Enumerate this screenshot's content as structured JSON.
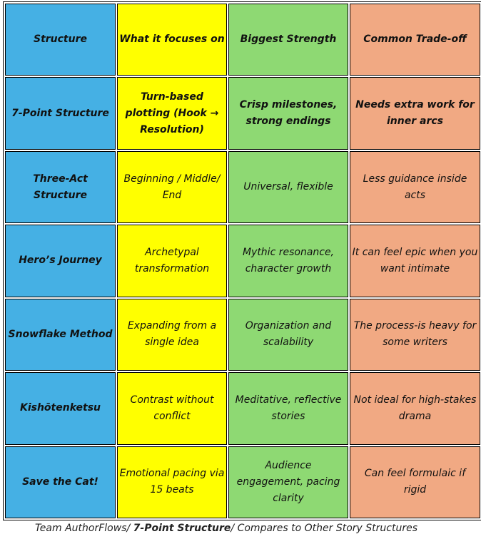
{
  "table": {
    "header": [
      "Structure",
      "What it focuses on",
      "Biggest Strength",
      "Common Trade-off"
    ],
    "rows": [
      [
        "7-Point Structure",
        "Turn-based plotting (Hook → Resolution)",
        "Crisp milestones, strong endings",
        "Needs extra work for inner arcs"
      ],
      [
        "Three-Act Structure",
        "Beginning / Middle/ End",
        "Universal, flexible",
        "Less guidance inside acts"
      ],
      [
        "Hero’s Journey",
        "Archetypal transformation",
        "Mythic resonance, character growth",
        "It can feel epic when you want intimate"
      ],
      [
        "Snowflake Method",
        "Expanding from a single idea",
        "Organization and scalability",
        "The process-is heavy for some writers"
      ],
      [
        "Kishōtenketsu",
        "Contrast without conflict",
        "Meditative, reflective stories",
        "Not ideal for high-stakes drama"
      ],
      [
        "Save the Cat!",
        "Emotional pacing via 15 beats",
        "Audience engagement, pacing clarity",
        "Can feel formulaic if rigid"
      ]
    ]
  },
  "caption": {
    "parts": [
      "Team AuthorFlows/ ",
      "7-Point Structure",
      "/ Compares to Other Story Structures"
    ]
  }
}
